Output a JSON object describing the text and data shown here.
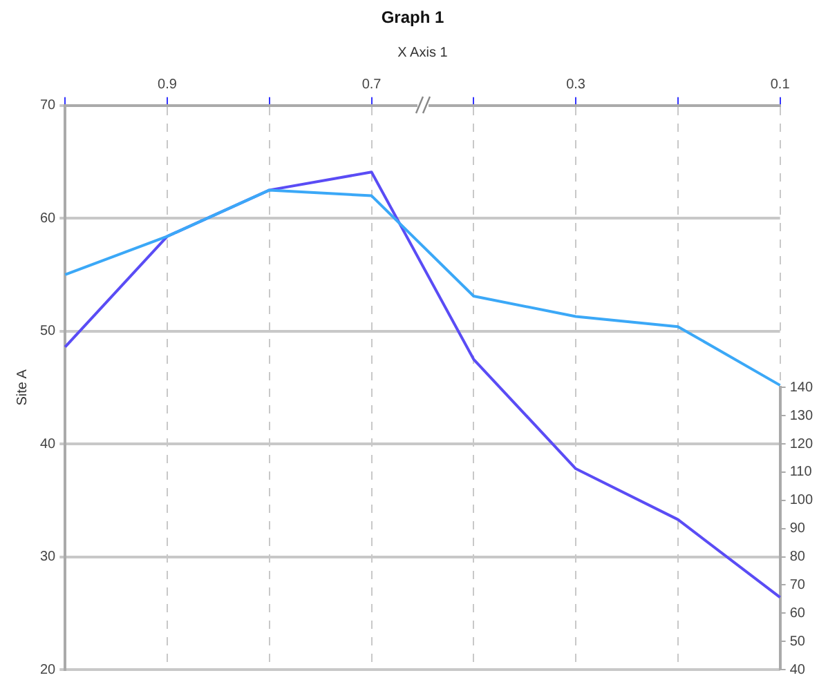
{
  "chart_data": {
    "type": "line",
    "title": "Graph 1",
    "xlabel": "X Axis 1",
    "ylabel": "Site A",
    "categories": [
      null,
      "0.9",
      null,
      "0.7",
      null,
      "0.3",
      null,
      "0.1"
    ],
    "series": [
      {
        "color": "#3ba8f7",
        "values": [
          55.0,
          58.4,
          62.5,
          62.0,
          53.1,
          51.3,
          50.4,
          45.2
        ]
      },
      {
        "color": "#5a4cf5",
        "values": [
          48.6,
          58.4,
          62.5,
          64.1,
          47.5,
          37.8,
          33.3,
          26.4
        ]
      }
    ],
    "ylim": [
      20,
      70
    ],
    "yticks": [
      20,
      30,
      40,
      50,
      60,
      70
    ],
    "y2lim": [
      40,
      140
    ],
    "y2ticks": [
      40,
      50,
      60,
      70,
      80,
      90,
      100,
      110,
      120,
      130,
      140
    ],
    "grid": true,
    "legend": false,
    "marker": "none",
    "line_style": "solid"
  }
}
